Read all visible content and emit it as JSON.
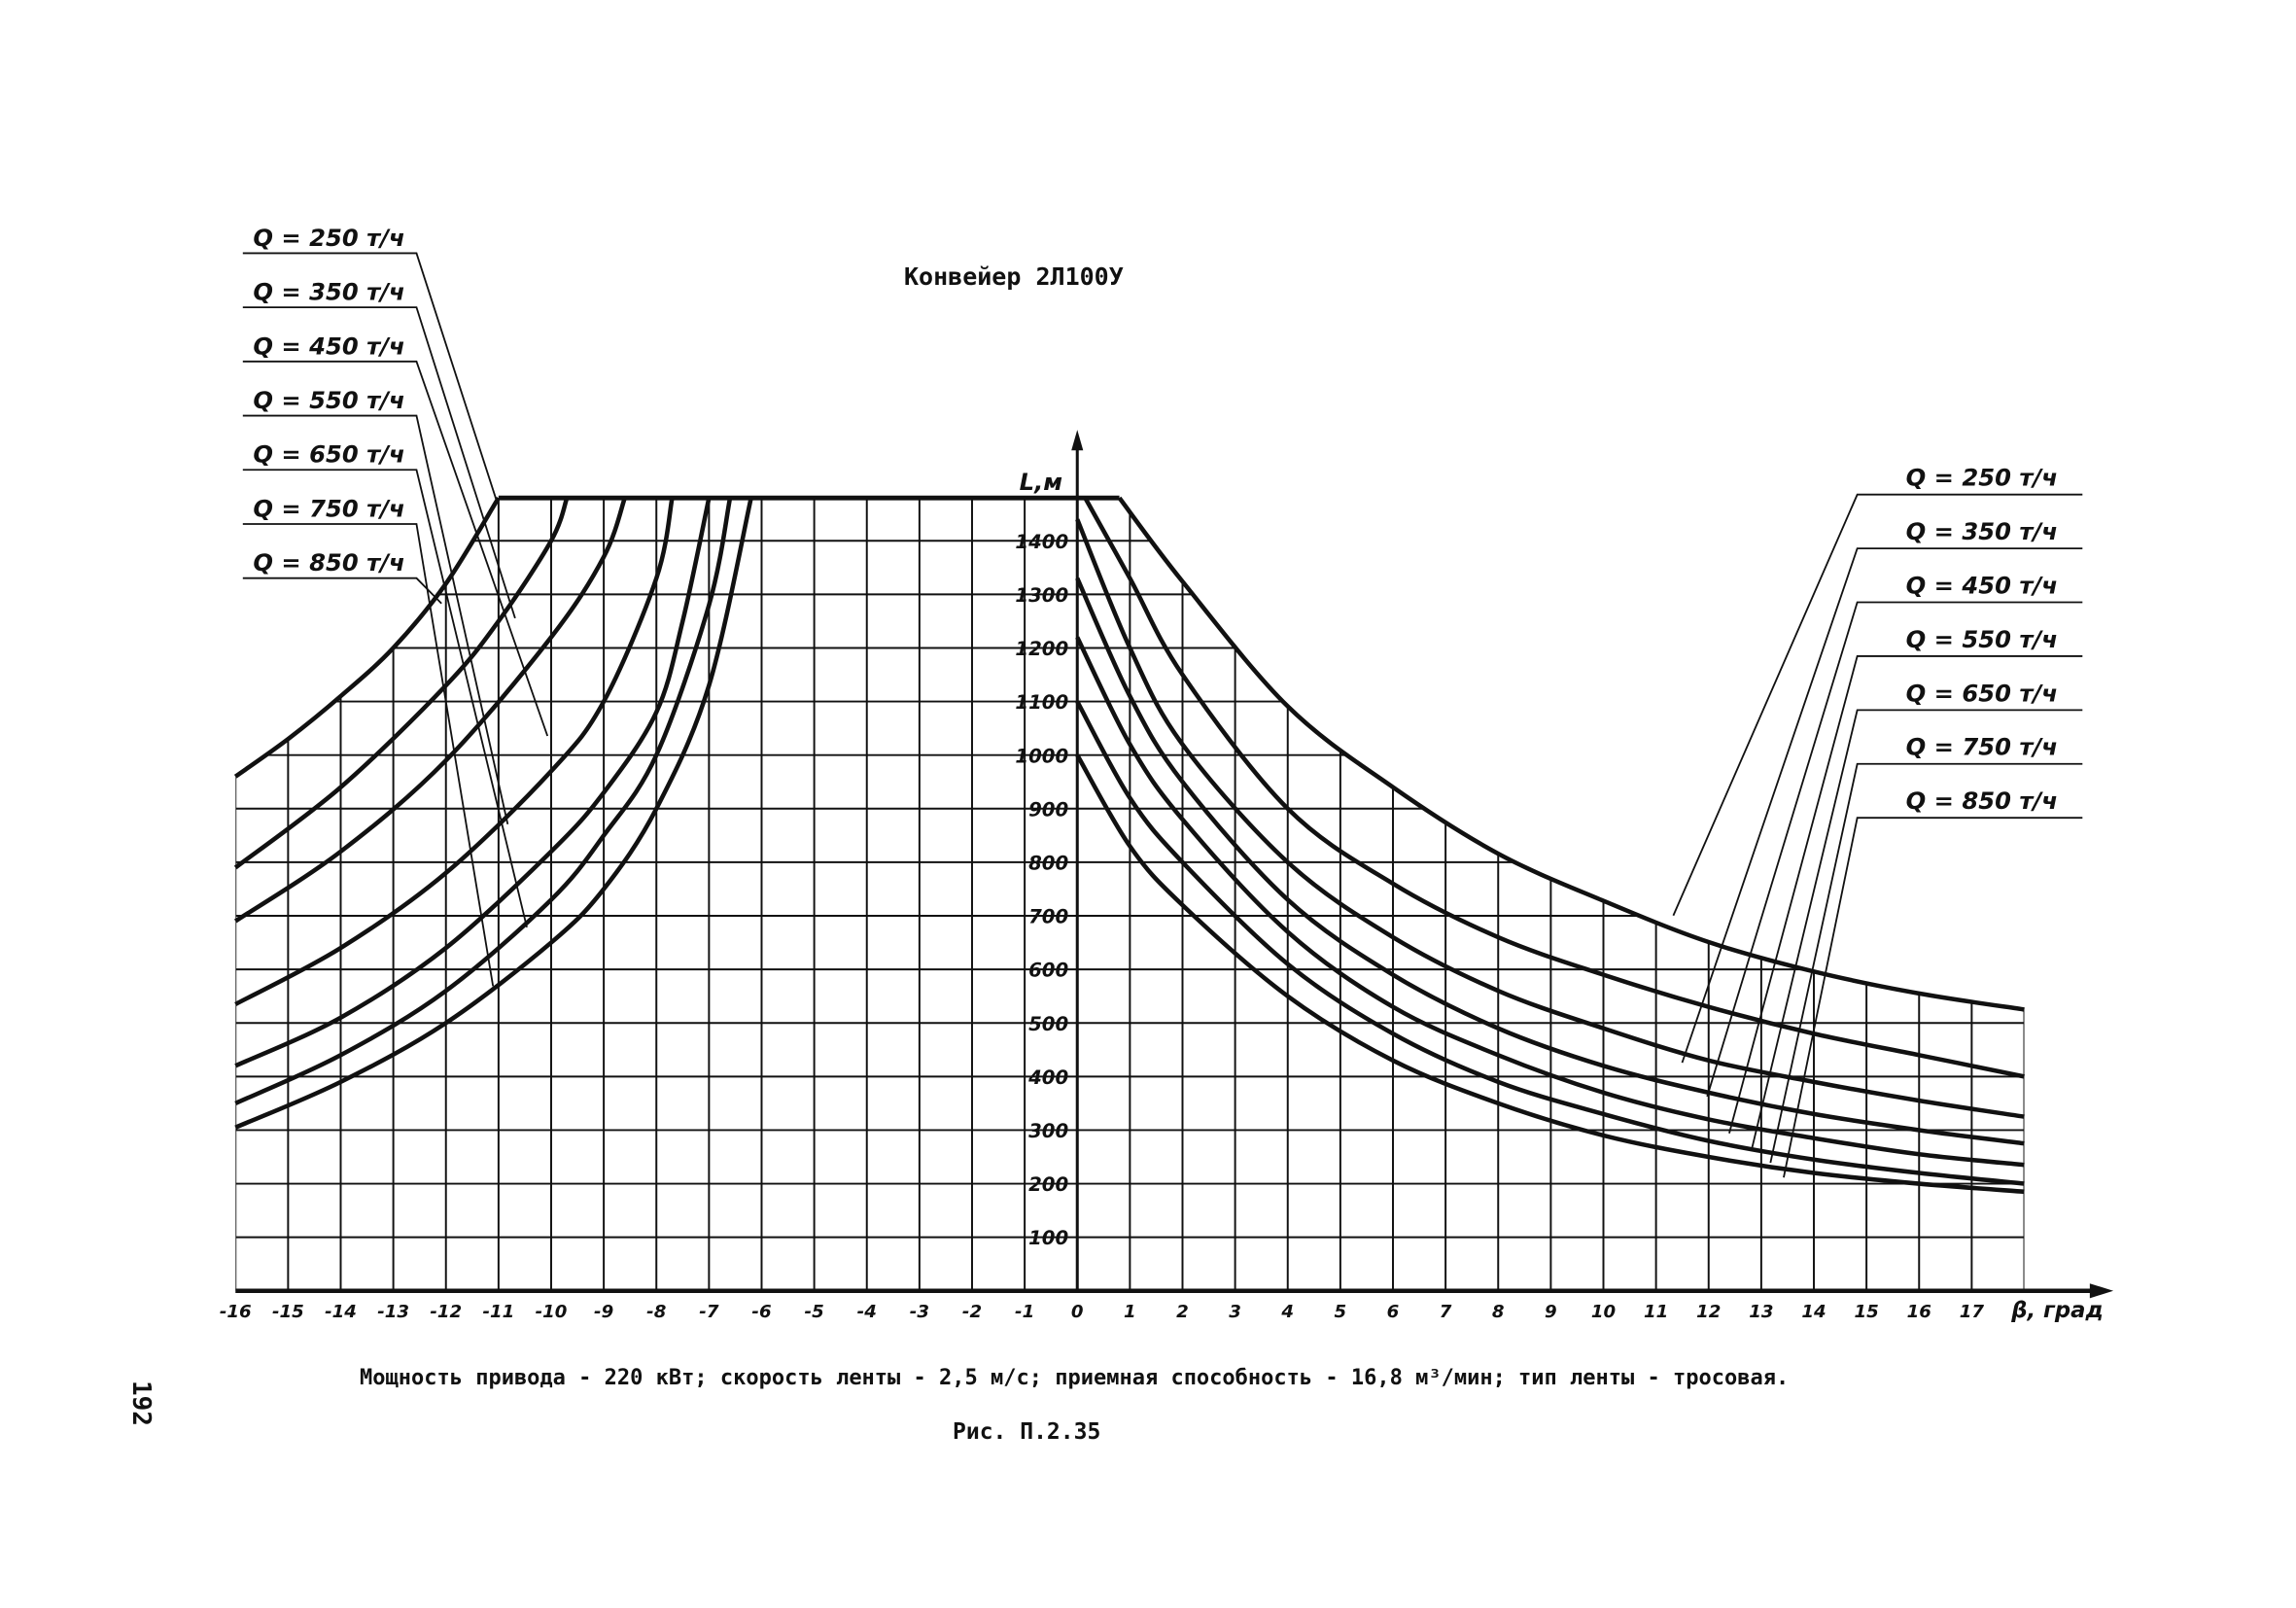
{
  "page_number": "192",
  "chart_data": {
    "type": "line",
    "title": "Конвейер 2Л100У",
    "xlabel": "β, град",
    "ylabel": "L,м",
    "xlim": [
      -16,
      18
    ],
    "ylim": [
      0,
      1480
    ],
    "grid": true,
    "x_ticks": [
      -16,
      -15,
      -14,
      -13,
      -12,
      -11,
      -10,
      -9,
      -8,
      -7,
      -6,
      -5,
      -4,
      -3,
      -2,
      -1,
      0,
      1,
      2,
      3,
      4,
      5,
      6,
      7,
      8,
      9,
      10,
      11,
      12,
      13,
      14,
      15,
      16,
      17
    ],
    "y_ticks": [
      100,
      200,
      300,
      400,
      500,
      600,
      700,
      800,
      900,
      1000,
      1100,
      1200,
      1300,
      1400
    ],
    "legend_left": [
      "Q = 250 т/ч",
      "Q = 350 т/ч",
      "Q = 450 т/ч",
      "Q = 550 т/ч",
      "Q = 650 т/ч",
      "Q = 750 т/ч",
      "Q = 850 т/ч"
    ],
    "legend_right": [
      "Q = 250 т/ч",
      "Q = 350 т/ч",
      "Q = 450 т/ч",
      "Q = 550 т/ч",
      "Q = 650 т/ч",
      "Q = 750 т/ч",
      "Q = 850 т/ч"
    ],
    "series": [
      {
        "name": "Q = 250 т/ч",
        "left": [
          [
            -16,
            960
          ],
          [
            -15,
            1030
          ],
          [
            -14,
            1110
          ],
          [
            -13,
            1200
          ],
          [
            -12,
            1320
          ],
          [
            -11,
            1480
          ]
        ],
        "right": [
          [
            0.8,
            1480
          ],
          [
            2,
            1324
          ],
          [
            4,
            1091
          ],
          [
            6,
            940
          ],
          [
            8,
            816
          ],
          [
            10,
            728
          ],
          [
            12,
            651
          ],
          [
            14,
            596
          ],
          [
            16,
            555
          ],
          [
            18,
            525
          ]
        ]
      },
      {
        "name": "Q = 350 т/ч",
        "left": [
          [
            -16,
            790
          ],
          [
            -14,
            940
          ],
          [
            -12,
            1130
          ],
          [
            -11,
            1250
          ],
          [
            -10,
            1400
          ],
          [
            -9.7,
            1480
          ]
        ],
        "right": [
          [
            0.15,
            1480
          ],
          [
            1,
            1330
          ],
          [
            2,
            1150
          ],
          [
            4,
            900
          ],
          [
            6,
            760
          ],
          [
            8,
            660
          ],
          [
            10,
            590
          ],
          [
            12,
            530
          ],
          [
            14,
            480
          ],
          [
            16,
            440
          ],
          [
            18,
            400
          ]
        ]
      },
      {
        "name": "Q = 450 т/ч",
        "left": [
          [
            -16,
            690
          ],
          [
            -14,
            820
          ],
          [
            -12,
            990
          ],
          [
            -10,
            1220
          ],
          [
            -9,
            1370
          ],
          [
            -8.6,
            1480
          ]
        ],
        "right": [
          [
            0,
            1440
          ],
          [
            1,
            1200
          ],
          [
            2,
            1020
          ],
          [
            4,
            800
          ],
          [
            6,
            660
          ],
          [
            8,
            560
          ],
          [
            10,
            490
          ],
          [
            12,
            430
          ],
          [
            14,
            390
          ],
          [
            16,
            355
          ],
          [
            18,
            325
          ]
        ]
      },
      {
        "name": "Q = 550 т/ч",
        "left": [
          [
            -16,
            535
          ],
          [
            -14,
            640
          ],
          [
            -12,
            780
          ],
          [
            -10,
            970
          ],
          [
            -9,
            1100
          ],
          [
            -8,
            1330
          ],
          [
            -7.7,
            1480
          ]
        ],
        "right": [
          [
            0,
            1330
          ],
          [
            1,
            1110
          ],
          [
            2,
            950
          ],
          [
            4,
            730
          ],
          [
            6,
            590
          ],
          [
            8,
            490
          ],
          [
            10,
            420
          ],
          [
            12,
            370
          ],
          [
            14,
            330
          ],
          [
            16,
            300
          ],
          [
            18,
            275
          ]
        ]
      },
      {
        "name": "Q = 650 т/ч",
        "left": [
          [
            -16,
            420
          ],
          [
            -14,
            510
          ],
          [
            -12,
            640
          ],
          [
            -10,
            820
          ],
          [
            -9,
            930
          ],
          [
            -8,
            1080
          ],
          [
            -7.5,
            1250
          ],
          [
            -7,
            1480
          ]
        ],
        "right": [
          [
            0,
            1220
          ],
          [
            1,
            1020
          ],
          [
            2,
            880
          ],
          [
            4,
            670
          ],
          [
            6,
            530
          ],
          [
            8,
            440
          ],
          [
            10,
            370
          ],
          [
            12,
            320
          ],
          [
            14,
            285
          ],
          [
            16,
            255
          ],
          [
            18,
            235
          ]
        ]
      },
      {
        "name": "Q = 750 т/ч",
        "left": [
          [
            -16,
            350
          ],
          [
            -14,
            440
          ],
          [
            -12,
            560
          ],
          [
            -10,
            730
          ],
          [
            -9,
            850
          ],
          [
            -8,
            1000
          ],
          [
            -7,
            1280
          ],
          [
            -6.6,
            1480
          ]
        ],
        "right": [
          [
            0,
            1100
          ],
          [
            1,
            920
          ],
          [
            2,
            800
          ],
          [
            4,
            610
          ],
          [
            6,
            480
          ],
          [
            8,
            390
          ],
          [
            10,
            330
          ],
          [
            12,
            280
          ],
          [
            14,
            245
          ],
          [
            16,
            220
          ],
          [
            18,
            200
          ]
        ]
      },
      {
        "name": "Q = 850 т/ч",
        "left": [
          [
            -16,
            305
          ],
          [
            -14,
            390
          ],
          [
            -12,
            500
          ],
          [
            -10,
            650
          ],
          [
            -9,
            750
          ],
          [
            -8,
            900
          ],
          [
            -7,
            1130
          ],
          [
            -6.2,
            1480
          ]
        ],
        "right": [
          [
            0,
            1000
          ],
          [
            1,
            830
          ],
          [
            2,
            720
          ],
          [
            4,
            550
          ],
          [
            6,
            430
          ],
          [
            8,
            350
          ],
          [
            10,
            290
          ],
          [
            12,
            250
          ],
          [
            14,
            220
          ],
          [
            16,
            200
          ],
          [
            18,
            185
          ]
        ]
      }
    ]
  },
  "caption": "Мощность привода - 220 кВт; скорость ленты - 2,5 м/с; приемная способность - 16,8 м³/мин; тип ленты - тросовая.",
  "figure_label": "Рис. П.2.35"
}
